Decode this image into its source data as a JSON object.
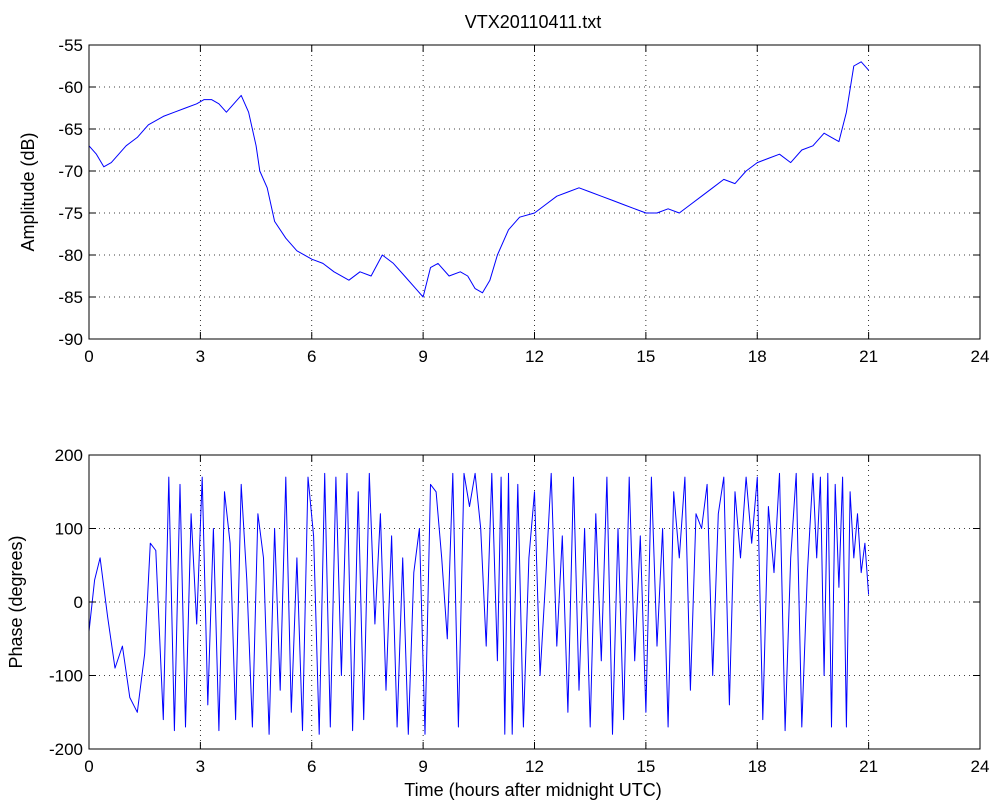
{
  "chart_data": [
    {
      "type": "line",
      "title": "VTX20110411.txt",
      "xlabel": "",
      "ylabel": "Amplitude (dB)",
      "xlim": [
        0,
        24
      ],
      "ylim": [
        -90,
        -55
      ],
      "xticks": [
        "0",
        "3",
        "6",
        "9",
        "12",
        "15",
        "18",
        "21",
        "24"
      ],
      "yticks": [
        "-90",
        "-85",
        "-80",
        "-75",
        "-70",
        "-65",
        "-60",
        "-55"
      ],
      "grid": true,
      "series": [
        {
          "color": "#0000ff",
          "x": [
            0,
            0.2,
            0.4,
            0.6,
            0.8,
            1.0,
            1.3,
            1.6,
            2.0,
            2.3,
            2.6,
            2.9,
            3.1,
            3.3,
            3.5,
            3.7,
            3.9,
            4.1,
            4.3,
            4.5,
            4.6,
            4.8,
            5.0,
            5.3,
            5.6,
            6.0,
            6.3,
            6.6,
            7.0,
            7.3,
            7.6,
            7.9,
            8.2,
            8.5,
            8.8,
            9.0,
            9.2,
            9.4,
            9.7,
            10.0,
            10.2,
            10.4,
            10.6,
            10.8,
            11.0,
            11.3,
            11.6,
            12.0,
            12.3,
            12.6,
            12.9,
            13.2,
            13.5,
            13.8,
            14.1,
            14.4,
            14.7,
            15.0,
            15.3,
            15.6,
            15.9,
            16.2,
            16.5,
            16.8,
            17.1,
            17.4,
            17.7,
            18.0,
            18.3,
            18.6,
            18.9,
            19.2,
            19.5,
            19.8,
            20.0,
            20.2,
            20.4,
            20.6,
            20.8,
            21.0
          ],
          "y": [
            -67,
            -68,
            -69.5,
            -69,
            -68,
            -67,
            -66,
            -64.5,
            -63.5,
            -63,
            -62.5,
            -62,
            -61.5,
            -61.5,
            -62,
            -63,
            -62,
            -61,
            -63,
            -67,
            -70,
            -72,
            -76,
            -78,
            -79.5,
            -80.5,
            -81,
            -82,
            -83,
            -82,
            -82.5,
            -80,
            -81,
            -82.5,
            -84,
            -85,
            -81.5,
            -81,
            -82.5,
            -82,
            -82.5,
            -84,
            -84.5,
            -83,
            -80,
            -77,
            -75.5,
            -75,
            -74,
            -73,
            -72.5,
            -72,
            -72.5,
            -73,
            -73.5,
            -74,
            -74.5,
            -75,
            -75,
            -74.5,
            -75,
            -74,
            -73,
            -72,
            -71,
            -71.5,
            -70,
            -69,
            -68.5,
            -68,
            -69,
            -67.5,
            -67,
            -65.5,
            -66,
            -66.5,
            -63,
            -57.5,
            -57,
            -58
          ]
        }
      ]
    },
    {
      "type": "line",
      "title": "",
      "xlabel": "Time (hours after midnight UTC)",
      "ylabel": "Phase (degrees)",
      "xlim": [
        0,
        24
      ],
      "ylim": [
        -200,
        200
      ],
      "xticks": [
        "0",
        "3",
        "6",
        "9",
        "12",
        "15",
        "18",
        "21",
        "24"
      ],
      "yticks": [
        "-200",
        "-100",
        "0",
        "100",
        "200"
      ],
      "grid": true,
      "series": [
        {
          "color": "#0000ff",
          "x": [
            0,
            0.15,
            0.3,
            0.5,
            0.7,
            0.9,
            1.1,
            1.3,
            1.5,
            1.65,
            1.8,
            2.0,
            2.15,
            2.3,
            2.45,
            2.6,
            2.75,
            2.9,
            3.05,
            3.2,
            3.35,
            3.5,
            3.65,
            3.8,
            3.95,
            4.1,
            4.25,
            4.4,
            4.55,
            4.7,
            4.85,
            5.0,
            5.15,
            5.3,
            5.45,
            5.6,
            5.75,
            5.9,
            6.05,
            6.2,
            6.35,
            6.5,
            6.65,
            6.8,
            6.95,
            7.1,
            7.25,
            7.4,
            7.55,
            7.7,
            7.85,
            8.0,
            8.15,
            8.3,
            8.45,
            8.6,
            8.75,
            8.9,
            9.05,
            9.2,
            9.35,
            9.5,
            9.65,
            9.8,
            9.95,
            10.1,
            10.25,
            10.4,
            10.55,
            10.7,
            10.85,
            11.0,
            11.1,
            11.2,
            11.3,
            11.4,
            11.55,
            11.7,
            11.85,
            12.0,
            12.15,
            12.3,
            12.45,
            12.6,
            12.75,
            12.9,
            13.05,
            13.2,
            13.35,
            13.5,
            13.65,
            13.8,
            13.95,
            14.1,
            14.25,
            14.4,
            14.55,
            14.7,
            14.85,
            15.0,
            15.15,
            15.3,
            15.45,
            15.6,
            15.75,
            15.9,
            16.05,
            16.2,
            16.35,
            16.5,
            16.65,
            16.8,
            16.95,
            17.1,
            17.25,
            17.4,
            17.55,
            17.7,
            17.85,
            18.0,
            18.15,
            18.3,
            18.45,
            18.6,
            18.75,
            18.9,
            19.05,
            19.2,
            19.35,
            19.5,
            19.6,
            19.7,
            19.8,
            19.9,
            20.0,
            20.1,
            20.2,
            20.3,
            20.4,
            20.5,
            20.6,
            20.7,
            20.8,
            20.9,
            21.0
          ],
          "y": [
            -40,
            30,
            60,
            -20,
            -90,
            -60,
            -130,
            -150,
            -70,
            80,
            70,
            -160,
            170,
            -175,
            160,
            -170,
            120,
            -30,
            170,
            -140,
            100,
            -175,
            150,
            80,
            -160,
            160,
            30,
            -170,
            120,
            60,
            -180,
            100,
            -120,
            170,
            -150,
            60,
            -175,
            170,
            90,
            -180,
            175,
            -170,
            170,
            -100,
            175,
            -175,
            150,
            -160,
            175,
            -30,
            120,
            -120,
            90,
            -170,
            60,
            -180,
            40,
            100,
            -180,
            160,
            150,
            60,
            -50,
            175,
            -170,
            175,
            130,
            175,
            100,
            -60,
            175,
            -80,
            170,
            -180,
            175,
            -180,
            160,
            -170,
            60,
            150,
            -100,
            30,
            175,
            -60,
            90,
            -150,
            170,
            -120,
            100,
            -170,
            120,
            -80,
            170,
            -180,
            100,
            -160,
            170,
            -80,
            90,
            -150,
            170,
            -60,
            100,
            -170,
            150,
            60,
            170,
            -120,
            120,
            100,
            160,
            -100,
            120,
            170,
            -140,
            150,
            60,
            170,
            80,
            170,
            -160,
            130,
            40,
            175,
            -175,
            60,
            175,
            -170,
            40,
            175,
            60,
            170,
            -100,
            175,
            -170,
            160,
            20,
            170,
            -170,
            150,
            60,
            120,
            40,
            80,
            10
          ]
        }
      ]
    }
  ]
}
